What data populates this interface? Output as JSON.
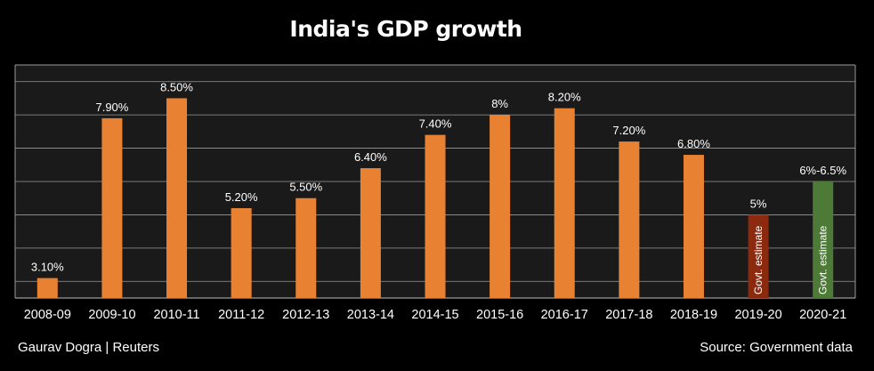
{
  "title": "India's GDP growth",
  "credit": "Gaurav Dogra | Reuters",
  "source": "Source: Government data",
  "colors": {
    "background": "#000000",
    "plot": "#1a1a1a",
    "grid": "#9a9a9a",
    "bar": "#e88232",
    "estimate_2019_20": "#8b2a0e",
    "estimate_2020_21": "#4e7a38"
  },
  "chart_data": {
    "type": "bar",
    "categories": [
      "2008-09",
      "2009-10",
      "2010-11",
      "2011-12",
      "2012-13",
      "2013-14",
      "2014-15",
      "2015-16",
      "2016-17",
      "2017-18",
      "2018-19",
      "2019-20",
      "2020-21"
    ],
    "values": [
      3.1,
      7.9,
      8.5,
      5.2,
      5.5,
      6.4,
      7.4,
      8.0,
      8.2,
      7.2,
      6.8,
      5.0,
      6.0
    ],
    "data_labels": [
      "3.10%",
      "7.90%",
      "8.50%",
      "5.20%",
      "5.50%",
      "6.40%",
      "7.40%",
      "8%",
      "8.20%",
      "7.20%",
      "6.80%",
      "5%",
      "6%-6.5%"
    ],
    "bar_annotations": [
      "",
      "",
      "",
      "",
      "",
      "",
      "",
      "",
      "",
      "",
      "",
      "Govt. estimate",
      "Govt. estimate"
    ],
    "ylim": [
      2.5,
      9.5
    ],
    "grid": true,
    "xlabel": "",
    "ylabel": ""
  }
}
